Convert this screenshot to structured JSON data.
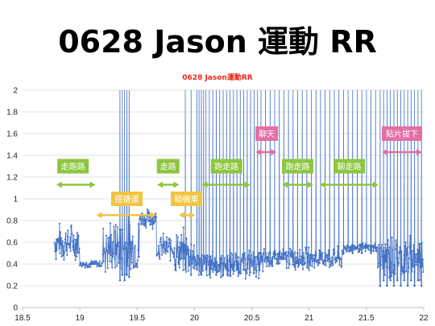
{
  "slide": {
    "title": "0628 Jason 運動 RR"
  },
  "chart_data": {
    "type": "scatter",
    "title": "0628 Jason運動RR",
    "xlabel": "",
    "ylabel": "",
    "xlim": [
      18.5,
      22
    ],
    "ylim": [
      0,
      2
    ],
    "x_ticks": [
      "18.5",
      "19",
      "19.5",
      "20",
      "20.5",
      "21",
      "21.5",
      "22"
    ],
    "y_ticks": [
      "0",
      "0.2",
      "0.4",
      "0.6",
      "0.8",
      "1",
      "1.2",
      "1.4",
      "1.6",
      "1.8",
      "2"
    ],
    "grid": "horizontal",
    "series_color": "#4472c4",
    "segments": [
      {
        "x0": 18.78,
        "x1": 19.0,
        "base": 0.6,
        "amp": 0.2
      },
      {
        "x0": 19.0,
        "x1": 19.2,
        "base": 0.4,
        "amp": 0.04
      },
      {
        "x0": 19.2,
        "x1": 19.32,
        "base": 0.55,
        "amp": 0.3
      },
      {
        "x0": 19.32,
        "x1": 19.52,
        "base": 0.55,
        "amp": 0.35
      },
      {
        "x0": 19.52,
        "x1": 19.67,
        "base": 0.82,
        "amp": 0.1
      },
      {
        "x0": 19.67,
        "x1": 19.82,
        "base": 0.55,
        "amp": 0.15
      },
      {
        "x0": 19.82,
        "x1": 20.0,
        "base": 0.5,
        "amp": 0.25
      },
      {
        "x0": 20.0,
        "x1": 20.6,
        "base": 0.4,
        "amp": 0.15
      },
      {
        "x0": 20.6,
        "x1": 21.3,
        "base": 0.45,
        "amp": 0.12
      },
      {
        "x0": 21.3,
        "x1": 21.6,
        "base": 0.55,
        "amp": 0.05
      },
      {
        "x0": 21.6,
        "x1": 22.0,
        "base": 0.45,
        "amp": 0.25
      }
    ],
    "spikes": [
      [
        19.35,
        0.25
      ],
      [
        19.37,
        0.3
      ],
      [
        19.39,
        0.25
      ],
      [
        19.41,
        0.3
      ],
      [
        19.43,
        0.28
      ],
      [
        19.92,
        0.35
      ],
      [
        19.97,
        0.3
      ],
      [
        20.02,
        0.35
      ],
      [
        20.04,
        0.4
      ],
      [
        20.06,
        0.3
      ],
      [
        20.08,
        0.4
      ],
      [
        20.1,
        0.35
      ],
      [
        20.13,
        0.3
      ],
      [
        20.16,
        0.35
      ],
      [
        20.19,
        0.3
      ],
      [
        20.22,
        0.35
      ],
      [
        20.25,
        0.3
      ],
      [
        20.28,
        0.35
      ],
      [
        20.31,
        0.3
      ],
      [
        20.34,
        0.4
      ],
      [
        20.37,
        0.35
      ],
      [
        20.4,
        0.4
      ],
      [
        20.43,
        0.35
      ],
      [
        20.46,
        0.4
      ],
      [
        20.49,
        0.45
      ],
      [
        20.52,
        0.4
      ],
      [
        20.55,
        0.45
      ],
      [
        20.58,
        0.5
      ],
      [
        20.62,
        0.45
      ],
      [
        20.66,
        0.5
      ],
      [
        20.7,
        0.45
      ],
      [
        20.74,
        0.5
      ],
      [
        20.78,
        0.45
      ],
      [
        20.82,
        0.5
      ],
      [
        20.86,
        0.45
      ],
      [
        20.9,
        0.5
      ],
      [
        20.94,
        0.45
      ],
      [
        20.98,
        0.5
      ],
      [
        21.02,
        0.45
      ],
      [
        21.06,
        0.5
      ],
      [
        21.1,
        0.45
      ],
      [
        21.14,
        0.5
      ],
      [
        21.18,
        0.45
      ],
      [
        21.22,
        0.5
      ],
      [
        21.26,
        0.45
      ],
      [
        21.3,
        0.5
      ],
      [
        21.34,
        0.55
      ],
      [
        21.38,
        0.5
      ],
      [
        21.42,
        0.55
      ],
      [
        21.46,
        0.5
      ],
      [
        21.5,
        0.55
      ],
      [
        21.54,
        0.5
      ],
      [
        21.58,
        0.55
      ],
      [
        21.62,
        0.2
      ],
      [
        21.65,
        0.25
      ],
      [
        21.68,
        0.2
      ],
      [
        21.71,
        0.25
      ],
      [
        21.74,
        0.2
      ],
      [
        21.77,
        0.25
      ],
      [
        21.8,
        0.2
      ],
      [
        21.83,
        0.25
      ],
      [
        21.86,
        0.2
      ],
      [
        21.89,
        0.25
      ],
      [
        21.92,
        0.2
      ],
      [
        21.95,
        0.25
      ],
      [
        21.98,
        0.2
      ]
    ],
    "annotations": [
      {
        "text": "走跑路",
        "x_from": 18.78,
        "x_to": 19.15,
        "y": 1.13,
        "color": "#8dc63f",
        "label_x": 18.94,
        "label_y": 1.3
      },
      {
        "text": "搭捷運",
        "x_from": 19.13,
        "x_to": 19.68,
        "y": 0.85,
        "color": "#f2c440",
        "label_x": 19.41,
        "label_y": 1.0
      },
      {
        "text": "走路",
        "x_from": 19.66,
        "x_to": 19.88,
        "y": 1.13,
        "color": "#8dc63f",
        "label_x": 19.77,
        "label_y": 1.3
      },
      {
        "text": "騎機車",
        "x_from": 19.85,
        "x_to": 20.02,
        "y": 0.85,
        "color": "#f2c440",
        "label_x": 19.93,
        "label_y": 1.0
      },
      {
        "text": "跑走路",
        "x_from": 20.05,
        "x_to": 20.5,
        "y": 1.13,
        "color": "#8dc63f",
        "label_x": 20.28,
        "label_y": 1.3
      },
      {
        "text": "聊天",
        "x_from": 20.52,
        "x_to": 20.73,
        "y": 1.43,
        "color": "#e36fa5",
        "label_x": 20.63,
        "label_y": 1.6
      },
      {
        "text": "跑走路",
        "x_from": 20.75,
        "x_to": 21.05,
        "y": 1.13,
        "color": "#8dc63f",
        "label_x": 20.9,
        "label_y": 1.3
      },
      {
        "text": "聊走路",
        "x_from": 21.08,
        "x_to": 21.62,
        "y": 1.13,
        "color": "#8dc63f",
        "label_x": 21.35,
        "label_y": 1.3
      },
      {
        "text": "貼片拔下",
        "x_from": 21.62,
        "x_to": 22.0,
        "y": 1.43,
        "color": "#e36fa5",
        "label_x": 21.81,
        "label_y": 1.6
      }
    ]
  }
}
